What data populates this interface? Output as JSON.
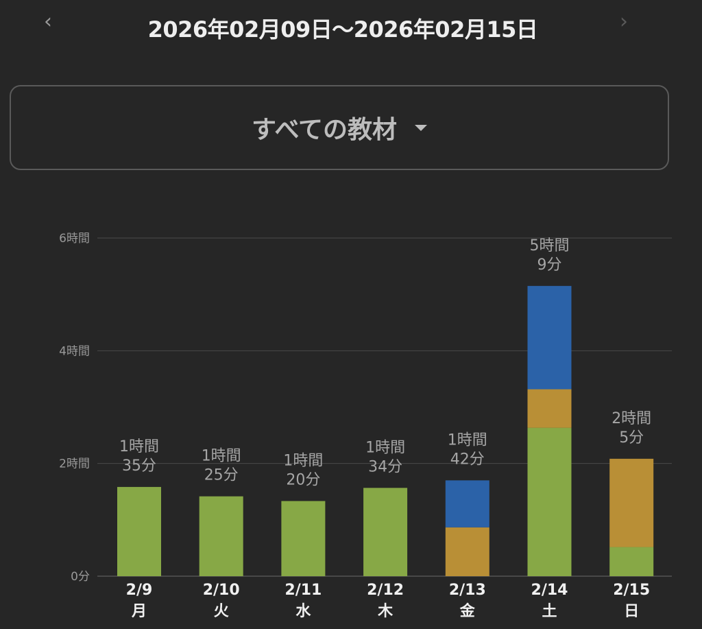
{
  "header": {
    "prev": "‹",
    "next": "›",
    "title": "2026年02月09日〜2026年02月15日"
  },
  "filter": {
    "label": "すべての教材"
  },
  "colors": {
    "green": "#87a846",
    "orange": "#b98f36",
    "blue": "#2b62a8",
    "grid": "#4a4a4a"
  },
  "chart_data": {
    "type": "bar",
    "stacked": true,
    "title": "",
    "ylabel": "",
    "xlabel": "",
    "ylim": [
      0,
      360
    ],
    "yticks": [
      {
        "value": 0,
        "label": "0分"
      },
      {
        "value": 120,
        "label": "2時間"
      },
      {
        "value": 240,
        "label": "4時間"
      },
      {
        "value": 360,
        "label": "6時間"
      }
    ],
    "categories": [
      "2/9",
      "2/10",
      "2/11",
      "2/12",
      "2/13",
      "2/14",
      "2/15"
    ],
    "weekdays": [
      "月",
      "火",
      "水",
      "木",
      "金",
      "土",
      "日"
    ],
    "totals": [
      [
        "1時間",
        "35分"
      ],
      [
        "1時間",
        "25分"
      ],
      [
        "1時間",
        "20分"
      ],
      [
        "1時間",
        "34分"
      ],
      [
        "1時間",
        "42分"
      ],
      [
        "5時間",
        "9分"
      ],
      [
        "2時間",
        "5分"
      ]
    ],
    "series": [
      {
        "name": "green",
        "color": "#87a846",
        "values": [
          95,
          85,
          80,
          94,
          0,
          158,
          31
        ]
      },
      {
        "name": "orange",
        "color": "#b98f36",
        "values": [
          0,
          0,
          0,
          0,
          52,
          41,
          94
        ]
      },
      {
        "name": "blue",
        "color": "#2b62a8",
        "values": [
          0,
          0,
          0,
          0,
          50,
          110,
          0
        ]
      }
    ],
    "grid": true,
    "legend": "none"
  }
}
